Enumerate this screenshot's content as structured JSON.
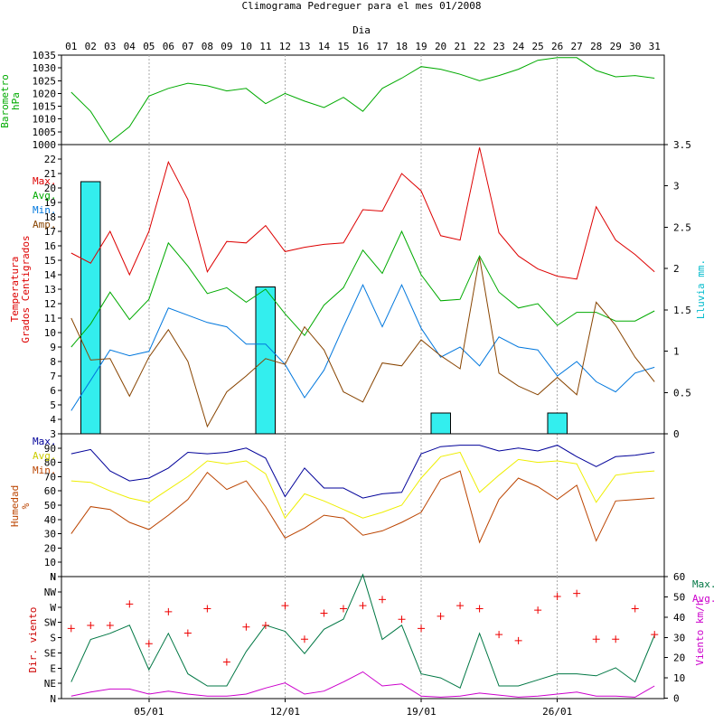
{
  "title": "Climograma Pedreguer para el mes 01/2008",
  "day_axis_label": "Dia",
  "colors": {
    "red": "#dd0000",
    "green": "#00aa00",
    "blue": "#0077dd",
    "brown": "#884400",
    "cyan": "#33eeee",
    "navy": "#000099",
    "yellow": "#eeee00",
    "teal": "#007744",
    "magenta": "#cc00cc",
    "grid": "#aaaaaa",
    "axis": "#000000"
  },
  "chart_data": [
    {
      "type": "line",
      "title": "Barometro hPa",
      "ylabel": "Barometro hPa",
      "x": [
        1,
        2,
        3,
        4,
        5,
        6,
        7,
        8,
        9,
        10,
        11,
        12,
        13,
        14,
        15,
        16,
        17,
        18,
        19,
        20,
        21,
        22,
        23,
        24,
        25,
        26,
        27,
        28,
        29,
        30,
        31
      ],
      "ylim": [
        1000,
        1035
      ],
      "yticks": [
        "1035",
        "1030",
        "1025",
        "1020",
        "1015",
        "1010",
        "1005",
        "1000"
      ],
      "series": [
        {
          "name": "Barometro",
          "values": [
            1020.5,
            1013,
            1001,
            1007,
            1019,
            1022,
            1024,
            1023,
            1021,
            1022,
            1016,
            1020,
            1017,
            1014.5,
            1018.5,
            1013,
            1022,
            1026,
            1030.5,
            1029.5,
            1027.5,
            1025,
            1027,
            1029.5,
            1033,
            1034,
            1034,
            1029,
            1026.5,
            1027,
            1026
          ]
        }
      ]
    },
    {
      "type": "line",
      "title": "Temperatura Grados Centigrados",
      "ylabel": "Temperatura Grados Centigrados",
      "y2label": "Lluvia mm.",
      "legend": [
        "Max.",
        "Avg.",
        "Min.",
        "Amp."
      ],
      "x": [
        1,
        2,
        3,
        4,
        5,
        6,
        7,
        8,
        9,
        10,
        11,
        12,
        13,
        14,
        15,
        16,
        17,
        18,
        19,
        20,
        21,
        22,
        23,
        24,
        25,
        26,
        27,
        28,
        29,
        30,
        31
      ],
      "ylim": [
        3,
        23
      ],
      "y2lim": [
        0,
        3.5
      ],
      "yticks": [
        "3",
        "4",
        "5",
        "6",
        "7",
        "8",
        "9",
        "10",
        "11",
        "12",
        "13",
        "14",
        "15",
        "16",
        "17",
        "18",
        "19",
        "20",
        "21",
        "22"
      ],
      "y2ticks": [
        "3.5",
        "3",
        "2.5",
        "2",
        "1.5",
        "1",
        "0.5",
        "0"
      ],
      "series": [
        {
          "name": "Max.",
          "values": [
            15.5,
            14.8,
            17,
            14,
            17,
            21.8,
            19.2,
            14.2,
            16.3,
            16.2,
            17.4,
            15.6,
            15.9,
            16.1,
            16.2,
            18.5,
            18.4,
            21,
            19.8,
            16.7,
            16.4,
            22.8,
            16.9,
            15.3,
            14.4,
            13.9,
            13.7,
            18.7,
            16.4,
            15.4,
            14.2
          ]
        },
        {
          "name": "Avg.",
          "values": [
            9,
            10.6,
            12.8,
            10.9,
            12.3,
            16.2,
            14.6,
            12.7,
            13.1,
            12.1,
            13,
            11.3,
            9.8,
            11.9,
            13.1,
            15.7,
            14.1,
            17,
            14,
            12.2,
            12.3,
            15.3,
            12.8,
            11.7,
            12,
            10.5,
            11.4,
            11.4,
            10.8,
            10.8,
            11.5
          ]
        },
        {
          "name": "Min.",
          "values": [
            4.6,
            6.7,
            8.8,
            8.4,
            8.7,
            11.7,
            11.2,
            10.7,
            10.4,
            9.2,
            9.2,
            7.8,
            5.5,
            7.4,
            10.4,
            13.3,
            10.4,
            13.3,
            10.3,
            8.3,
            9,
            7.7,
            9.7,
            9,
            8.8,
            7,
            8,
            6.6,
            5.9,
            7.2,
            7.6
          ]
        },
        {
          "name": "Amp.",
          "values": [
            11,
            8.1,
            8.2,
            5.6,
            8.3,
            10.2,
            8,
            3.5,
            5.9,
            7,
            8.2,
            7.8,
            10.4,
            8.8,
            5.9,
            5.2,
            7.9,
            7.7,
            9.5,
            8.4,
            7.5,
            15.2,
            7.2,
            6.3,
            5.7,
            6.9,
            5.7,
            12.1,
            10.5,
            8.3,
            6.6
          ]
        },
        {
          "name": "Lluvia",
          "type": "bar",
          "axis": "y2",
          "values": [
            0,
            3.05,
            0,
            0,
            0,
            0,
            0,
            0,
            0,
            0,
            1.78,
            0,
            0,
            0,
            0,
            0,
            0,
            0,
            0,
            0.25,
            0,
            0,
            0,
            0,
            0,
            0.25,
            0,
            0,
            0,
            0,
            0
          ]
        }
      ]
    },
    {
      "type": "line",
      "title": "Humedad %",
      "ylabel": "Humedad %",
      "legend": [
        "Max.",
        "Avg.",
        "Min."
      ],
      "x": [
        1,
        2,
        3,
        4,
        5,
        6,
        7,
        8,
        9,
        10,
        11,
        12,
        13,
        14,
        15,
        16,
        17,
        18,
        19,
        20,
        21,
        22,
        23,
        24,
        25,
        26,
        27,
        28,
        29,
        30,
        31
      ],
      "ylim": [
        0,
        100
      ],
      "yticks": [
        "N",
        "10",
        "20",
        "30",
        "40",
        "50",
        "60",
        "70",
        "80",
        "90"
      ],
      "series": [
        {
          "name": "Max.",
          "values": [
            86,
            89,
            74,
            67,
            69,
            76,
            87,
            86,
            87,
            90,
            83,
            56,
            76,
            62,
            62,
            55,
            58,
            59,
            86,
            91,
            92,
            92,
            88,
            90,
            88,
            92,
            84,
            77,
            84,
            85,
            87
          ]
        },
        {
          "name": "Avg.",
          "values": [
            67,
            66,
            60,
            55,
            52,
            61,
            70,
            81,
            79,
            81,
            72,
            41,
            58,
            53,
            47,
            41,
            45,
            50,
            69,
            84,
            87,
            59,
            71,
            82,
            80,
            81,
            79,
            52,
            71,
            73,
            74
          ]
        },
        {
          "name": "Min.",
          "values": [
            30,
            49,
            47,
            38,
            33,
            43,
            54,
            73,
            61,
            67,
            49,
            27,
            34,
            43,
            41,
            29,
            32,
            38,
            45,
            68,
            74,
            24,
            54,
            69,
            63,
            54,
            64,
            25,
            53,
            54,
            55
          ]
        }
      ]
    },
    {
      "type": "line",
      "title": "Dir. viento / Viento km/h",
      "ylabel": "Dir. viento",
      "y2label": "Viento km/h",
      "legend": [
        "Max.",
        "Avg."
      ],
      "x": [
        1,
        2,
        3,
        4,
        5,
        6,
        7,
        8,
        9,
        10,
        11,
        12,
        13,
        14,
        15,
        16,
        17,
        18,
        19,
        20,
        21,
        22,
        23,
        24,
        25,
        26,
        27,
        28,
        29,
        30,
        31
      ],
      "ylim": [
        0,
        60
      ],
      "yticks": [
        "N",
        "NE",
        "E",
        "SE",
        "S",
        "SW",
        "W",
        "NW",
        "N"
      ],
      "y2ticks": [
        "60",
        "50",
        "40",
        "30",
        "20",
        "10",
        "0"
      ],
      "series": [
        {
          "name": "Max.",
          "values": [
            8,
            29,
            32,
            36,
            14,
            32,
            12,
            6,
            6,
            23,
            36,
            33,
            22,
            34,
            39,
            61,
            29,
            36,
            12,
            10,
            5,
            32,
            6,
            6,
            9,
            12,
            12,
            11,
            15,
            8,
            31
          ]
        },
        {
          "name": "Avg.",
          "values": [
            1,
            3,
            4.5,
            4.5,
            2,
            3.5,
            2,
            1,
            1,
            2,
            5,
            7.5,
            2,
            3.5,
            8,
            13,
            6,
            7,
            1,
            0.5,
            1,
            2.5,
            1.5,
            0.5,
            1,
            2,
            3,
            1,
            1,
            0.5,
            6
          ]
        },
        {
          "name": "Dir.",
          "type": "scatter",
          "units": "compass-eighths",
          "values": [
            4.6,
            4.8,
            4.8,
            6.2,
            3.6,
            5.7,
            4.3,
            5.9,
            2.4,
            4.7,
            4.8,
            6.1,
            3.9,
            5.6,
            5.9,
            6.1,
            6.5,
            5.2,
            4.6,
            5.4,
            6.1,
            5.9,
            4.2,
            3.8,
            5.8,
            6.7,
            6.9,
            3.9,
            3.9,
            5.9,
            4.2
          ]
        }
      ]
    }
  ],
  "xaxis": {
    "top_ticks": [
      "01",
      "02",
      "03",
      "04",
      "05",
      "06",
      "07",
      "08",
      "09",
      "10",
      "11",
      "12",
      "13",
      "14",
      "15",
      "16",
      "17",
      "18",
      "19",
      "20",
      "21",
      "22",
      "23",
      "24",
      "25",
      "26",
      "27",
      "28",
      "29",
      "30",
      "31"
    ],
    "bottom_ticks": [
      "05/01",
      "12/01",
      "19/01",
      "26/01"
    ]
  },
  "panel_labels": {
    "baro_1": "Barometro",
    "baro_2": "hPa",
    "temp_1": "Temperatura",
    "temp_2": "Grados Centigrados",
    "rain": "Lluvia mm.",
    "hum_1": "Humedad",
    "hum_2": "%",
    "dir": "Dir. viento",
    "wind": "Viento km/h"
  },
  "legends": {
    "temp": [
      "Max.",
      "Avg.",
      "Min.",
      "Amp."
    ],
    "hum": [
      "Max.",
      "Avg.",
      "Min."
    ],
    "wind": [
      "Max.",
      "Avg."
    ]
  }
}
